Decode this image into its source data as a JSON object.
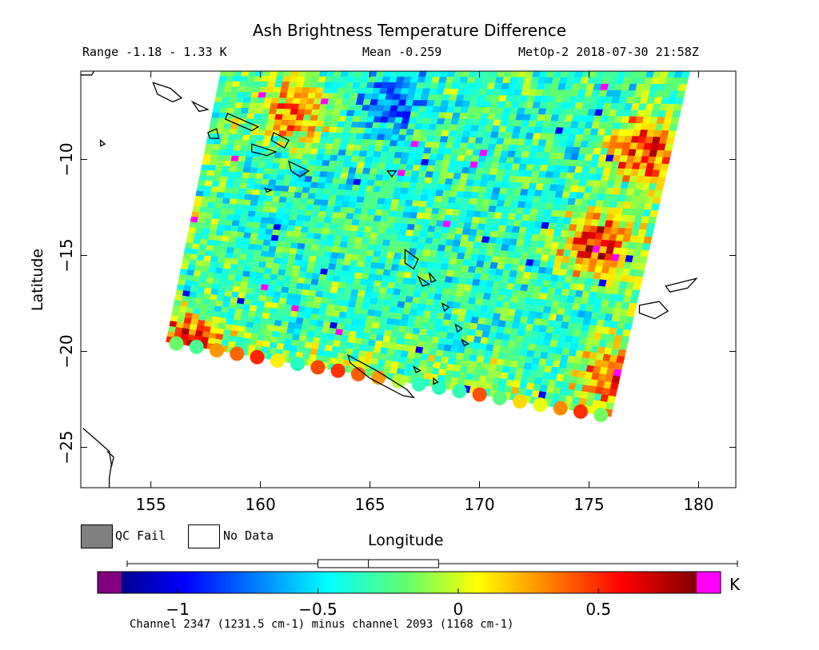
{
  "header": {
    "title": "Ash Brightness Temperature Difference",
    "range_text": "Range -1.18 - 1.33 K",
    "mean_text": "Mean -0.259",
    "satellite_time": "MetOp-2 2018-07-30 21:58Z"
  },
  "legend": {
    "qc_fail_label": "QC Fail",
    "no_data_label": "No Data",
    "qc_fail_color": "#808080",
    "no_data_color": "#ffffff"
  },
  "colorbar": {
    "unit": "K",
    "ticks": [
      {
        "value": -1,
        "label": "−1"
      },
      {
        "value": -0.5,
        "label": "−0.5"
      },
      {
        "value": 0,
        "label": "0"
      },
      {
        "value": 0.5,
        "label": "0.5"
      }
    ],
    "vmin": -1.2,
    "vmax": 0.85,
    "boxplot": {
      "whisker_low": -1.18,
      "q1": -0.5,
      "median": -0.32,
      "q3": -0.07,
      "whisker_high": 1.33
    },
    "low_color": "#800080",
    "high_color": "#ff00ff",
    "footnote": "Channel 2347 (1231.5 cm-1) minus channel 2093 (1168 cm-1)"
  },
  "chart_data": {
    "type": "heatmap",
    "title": "Ash Brightness Temperature Difference",
    "xlabel": "Longitude",
    "ylabel": "Latitude",
    "xlim": [
      151.8,
      181.7
    ],
    "ylim": [
      -27.1,
      -5.4
    ],
    "xticks": [
      155,
      160,
      165,
      170,
      175,
      180
    ],
    "yticks": [
      -10,
      -15,
      -20,
      -25
    ],
    "swath_corners": [
      [
        158.2,
        -5.4
      ],
      [
        179.6,
        -5.4
      ],
      [
        176.0,
        -23.4
      ],
      [
        155.7,
        -19.5
      ]
    ],
    "value_range": [
      -1.18,
      1.33
    ],
    "mean": -0.259,
    "units": "K",
    "hotspots": [
      {
        "lon": 175.3,
        "lat": -14.4,
        "value": 0.75
      },
      {
        "lon": 177.5,
        "lat": -9.5,
        "value": 0.65
      },
      {
        "lon": 161.5,
        "lat": -7.5,
        "value": 0.5
      },
      {
        "lon": 156.8,
        "lat": -19.8,
        "value": 0.5
      },
      {
        "lon": 176.0,
        "lat": -21.2,
        "value": 0.45
      },
      {
        "lon": 166.0,
        "lat": -7.0,
        "value": -0.8
      },
      {
        "lon": 162.5,
        "lat": -11.0,
        "value": -0.4
      }
    ],
    "grid": false,
    "coastlines": true
  }
}
